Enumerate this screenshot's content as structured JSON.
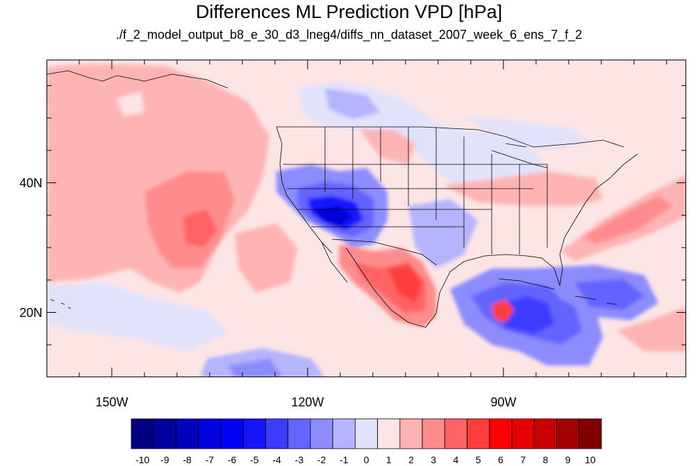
{
  "title": "Differences ML Prediction VPD [hPa]",
  "subtitle": "./f_2_model_output_b8_e_30_d3_lneg4/diffs_nn_dataset_2007_week_6_ens_7_f_2",
  "map": {
    "lon_range": [
      -160,
      -62
    ],
    "lat_range": [
      10,
      59
    ],
    "lat_ticks": [
      {
        "value": 40,
        "label": "40N"
      },
      {
        "value": 20,
        "label": "20N"
      }
    ],
    "lon_ticks": [
      {
        "value": -150,
        "label": "150W"
      },
      {
        "value": -120,
        "label": "120W"
      },
      {
        "value": -90,
        "label": "90W"
      }
    ]
  },
  "colorbar": {
    "labels": [
      "-10",
      "-9",
      "-8",
      "-7",
      "-6",
      "-5",
      "-4",
      "-3",
      "-2",
      "-1",
      "0",
      "1",
      "2",
      "3",
      "4",
      "5",
      "6",
      "7",
      "8",
      "9",
      "10"
    ],
    "colors": [
      "#000080",
      "#00009e",
      "#0000bd",
      "#0000dc",
      "#0000f5",
      "#1414ff",
      "#3c3cff",
      "#6464ff",
      "#8c8cff",
      "#b4b4ff",
      "#e2e2fb",
      "#fde5e5",
      "#ffb4b4",
      "#ff8c8c",
      "#ff6464",
      "#ff3c3c",
      "#ff0000",
      "#e60000",
      "#c80000",
      "#a50000",
      "#800000"
    ]
  }
}
